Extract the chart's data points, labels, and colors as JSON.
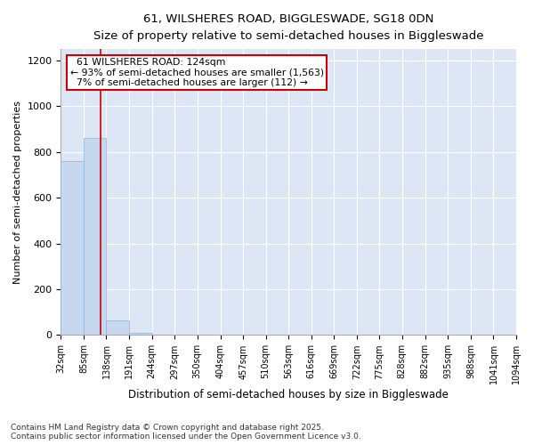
{
  "title1": "61, WILSHERES ROAD, BIGGLESWADE, SG18 0DN",
  "title2": "Size of property relative to semi-detached houses in Biggleswade",
  "xlabel": "Distribution of semi-detached houses by size in Biggleswade",
  "ylabel": "Number of semi-detached properties",
  "bin_edges": [
    32,
    85,
    138,
    191,
    244,
    297,
    350,
    404,
    457,
    510,
    563,
    616,
    669,
    722,
    775,
    828,
    882,
    935,
    988,
    1041,
    1094
  ],
  "bin_counts": [
    760,
    860,
    65,
    10,
    0,
    0,
    0,
    0,
    0,
    0,
    0,
    0,
    0,
    0,
    0,
    0,
    0,
    0,
    0,
    0
  ],
  "property_size": 124,
  "annotation_title": "61 WILSHERES ROAD: 124sqm",
  "annotation_line1": "← 93% of semi-detached houses are smaller (1,563)",
  "annotation_line2": "7% of semi-detached houses are larger (112) →",
  "bar_color": "#c5d8f0",
  "bar_edge_color": "#8ab4d8",
  "vline_color": "#cc0000",
  "annotation_box_facecolor": "#ffffff",
  "annotation_box_edgecolor": "#cc0000",
  "plot_bg_color": "#dce6f5",
  "fig_bg_color": "#ffffff",
  "grid_color": "#ffffff",
  "ylim": [
    0,
    1250
  ],
  "yticks": [
    0,
    200,
    400,
    600,
    800,
    1000,
    1200
  ],
  "footer1": "Contains HM Land Registry data © Crown copyright and database right 2025.",
  "footer2": "Contains public sector information licensed under the Open Government Licence v3.0."
}
